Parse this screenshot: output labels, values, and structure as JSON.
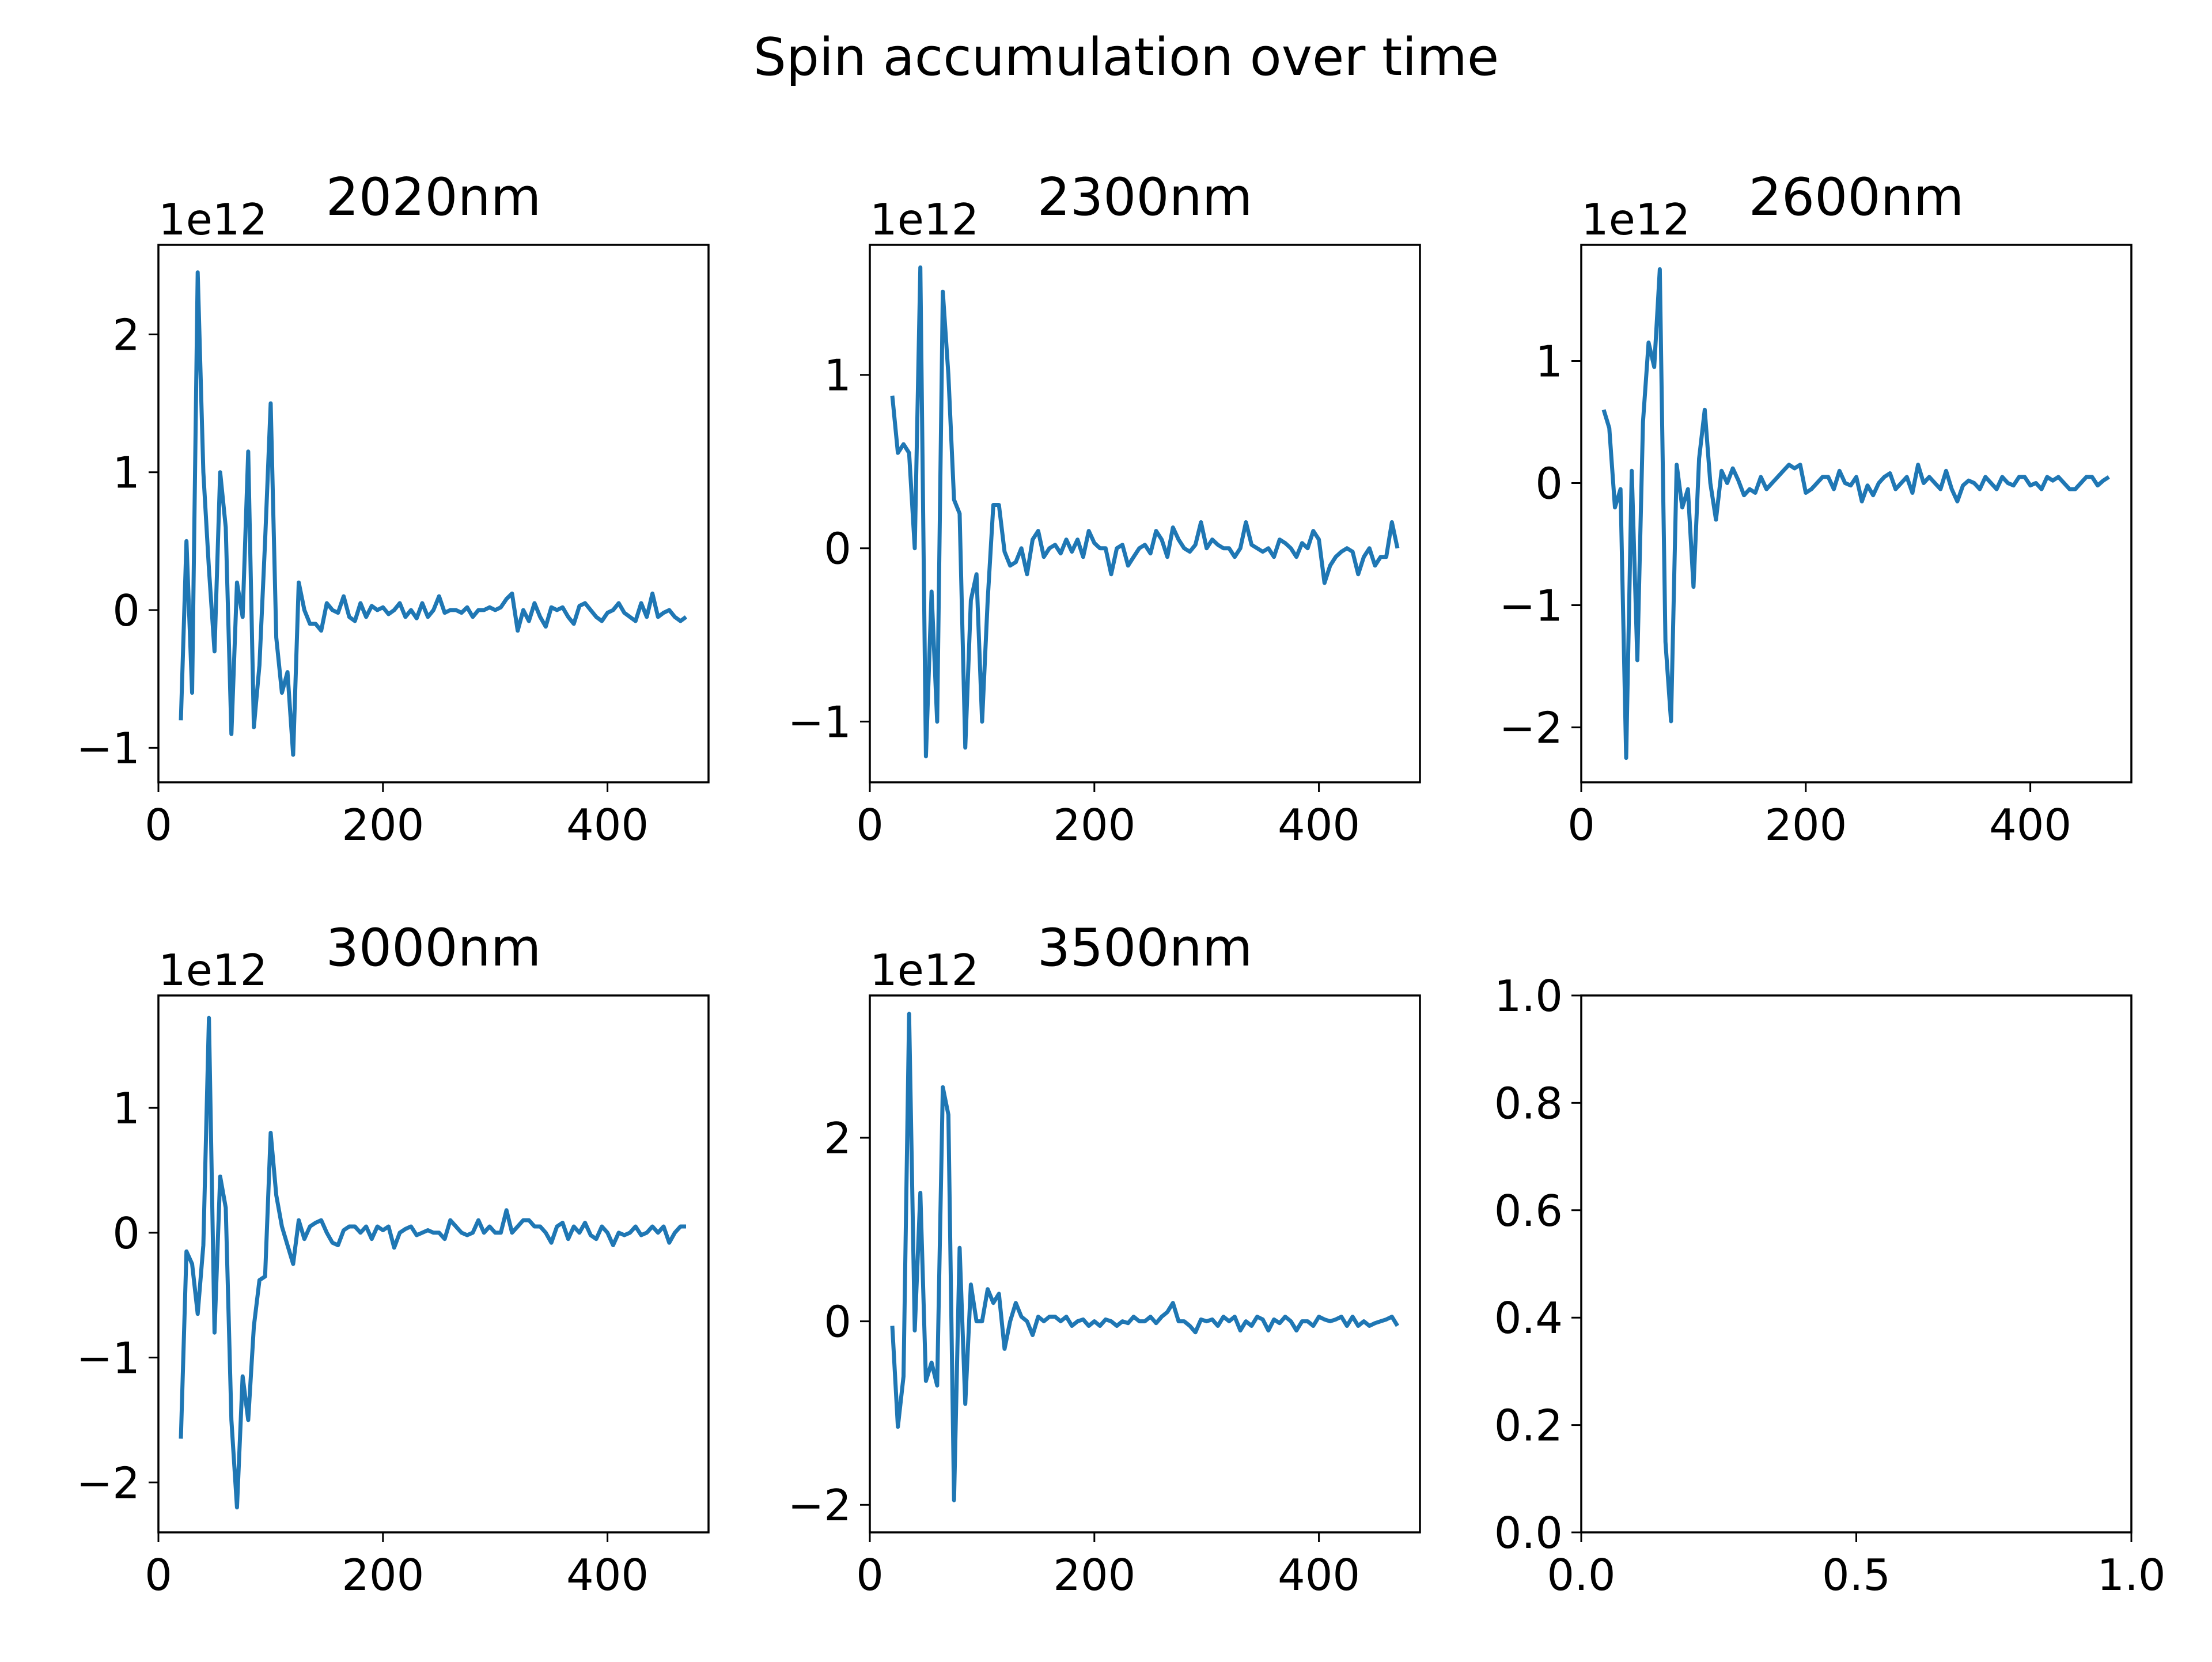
{
  "figure": {
    "title": "Spin accumulation over time"
  },
  "style": {
    "line_color": "#1f77b4",
    "axis_color": "#000000",
    "background": "#ffffff"
  },
  "chart_data": [
    {
      "type": "line",
      "title": "2020nm",
      "offset_text": "1e12",
      "xlim": [
        0,
        490
      ],
      "ylim": [
        -1.25,
        2.65
      ],
      "xticks": [
        0,
        200,
        400
      ],
      "xtick_labels": [
        "0",
        "200",
        "400"
      ],
      "yticks": [
        -1,
        0,
        1,
        2
      ],
      "ytick_labels": [
        "−1",
        "0",
        "1",
        "2"
      ],
      "series": [
        {
          "x": [
            20,
            25,
            30,
            35,
            40,
            45,
            50,
            55,
            60,
            65,
            70,
            75,
            80,
            85,
            90,
            95,
            100,
            105,
            110,
            115,
            120,
            125,
            130,
            135,
            140,
            145,
            150,
            155,
            160,
            165,
            170,
            175,
            180,
            185,
            190,
            195,
            200,
            205,
            210,
            215,
            220,
            225,
            230,
            235,
            240,
            245,
            250,
            255,
            260,
            265,
            270,
            275,
            280,
            285,
            290,
            295,
            300,
            305,
            310,
            315,
            320,
            325,
            330,
            335,
            340,
            345,
            350,
            355,
            360,
            365,
            370,
            375,
            380,
            385,
            390,
            395,
            400,
            405,
            410,
            415,
            420,
            425,
            430,
            435,
            440,
            445,
            450,
            455,
            460,
            465,
            470
          ],
          "y": [
            -0.8,
            0.5,
            -0.6,
            2.45,
            1.0,
            0.3,
            -0.3,
            1.0,
            0.6,
            -0.9,
            0.2,
            -0.05,
            1.15,
            -0.85,
            -0.4,
            0.5,
            1.5,
            -0.2,
            -0.6,
            -0.45,
            -1.05,
            0.2,
            0.0,
            -0.1,
            -0.1,
            -0.15,
            0.05,
            0.0,
            -0.02,
            0.1,
            -0.05,
            -0.08,
            0.05,
            -0.05,
            0.03,
            0.0,
            0.02,
            -0.03,
            0.0,
            0.05,
            -0.05,
            0.0,
            -0.06,
            0.05,
            -0.05,
            0.0,
            0.1,
            -0.02,
            0.0,
            0.0,
            -0.02,
            0.02,
            -0.05,
            0.0,
            0.0,
            0.02,
            0.0,
            0.02,
            0.08,
            0.12,
            -0.15,
            0.0,
            -0.08,
            0.05,
            -0.05,
            -0.12,
            0.02,
            0.0,
            0.02,
            -0.05,
            -0.1,
            0.03,
            0.05,
            0.0,
            -0.05,
            -0.08,
            -0.02,
            0.0,
            0.05,
            -0.02,
            -0.05,
            -0.08,
            0.05,
            -0.05,
            0.12,
            -0.05,
            -0.02,
            0.0,
            -0.05,
            -0.08,
            -0.05
          ]
        }
      ]
    },
    {
      "type": "line",
      "title": "2300nm",
      "offset_text": "1e12",
      "xlim": [
        0,
        490
      ],
      "ylim": [
        -1.35,
        1.75
      ],
      "xticks": [
        0,
        200,
        400
      ],
      "xtick_labels": [
        "0",
        "200",
        "400"
      ],
      "yticks": [
        -1,
        0,
        1
      ],
      "ytick_labels": [
        "−1",
        "0",
        "1"
      ],
      "series": [
        {
          "x": [
            20,
            25,
            30,
            35,
            40,
            45,
            50,
            55,
            60,
            65,
            70,
            75,
            80,
            85,
            90,
            95,
            100,
            105,
            110,
            115,
            120,
            125,
            130,
            135,
            140,
            145,
            150,
            155,
            160,
            165,
            170,
            175,
            180,
            185,
            190,
            195,
            200,
            205,
            210,
            215,
            220,
            225,
            230,
            235,
            240,
            245,
            250,
            255,
            260,
            265,
            270,
            275,
            280,
            285,
            290,
            295,
            300,
            305,
            310,
            315,
            320,
            325,
            330,
            335,
            340,
            345,
            350,
            355,
            360,
            365,
            370,
            375,
            380,
            385,
            390,
            395,
            400,
            405,
            410,
            415,
            420,
            425,
            430,
            435,
            440,
            445,
            450,
            455,
            460,
            465,
            470
          ],
          "y": [
            0.88,
            0.55,
            0.6,
            0.55,
            0.0,
            1.62,
            -1.2,
            -0.25,
            -1.0,
            1.48,
            1.0,
            0.28,
            0.2,
            -1.15,
            -0.3,
            -0.15,
            -1.0,
            -0.3,
            0.25,
            0.25,
            -0.02,
            -0.1,
            -0.08,
            0.0,
            -0.15,
            0.05,
            0.1,
            -0.05,
            0.0,
            0.02,
            -0.03,
            0.05,
            -0.02,
            0.05,
            -0.05,
            0.1,
            0.03,
            0.0,
            0.0,
            -0.15,
            0.0,
            0.02,
            -0.1,
            -0.05,
            0.0,
            0.02,
            -0.03,
            0.1,
            0.05,
            -0.05,
            0.12,
            0.05,
            0.0,
            -0.02,
            0.02,
            0.15,
            0.0,
            0.05,
            0.02,
            0.0,
            0.0,
            -0.05,
            0.0,
            0.15,
            0.02,
            0.0,
            -0.02,
            0.0,
            -0.05,
            0.05,
            0.03,
            0.0,
            -0.05,
            0.03,
            0.0,
            0.1,
            0.05,
            -0.2,
            -0.1,
            -0.05,
            -0.02,
            0.0,
            -0.02,
            -0.15,
            -0.05,
            0.0,
            -0.1,
            -0.05,
            -0.05,
            0.15,
            0.0
          ]
        }
      ]
    },
    {
      "type": "line",
      "title": "2600nm",
      "offset_text": "1e12",
      "xlim": [
        0,
        490
      ],
      "ylim": [
        -2.45,
        1.95
      ],
      "xticks": [
        0,
        200,
        400
      ],
      "xtick_labels": [
        "0",
        "200",
        "400"
      ],
      "yticks": [
        -2,
        -1,
        0,
        1
      ],
      "ytick_labels": [
        "−2",
        "−1",
        "0",
        "1"
      ],
      "series": [
        {
          "x": [
            20,
            25,
            30,
            35,
            40,
            45,
            50,
            55,
            60,
            65,
            70,
            75,
            80,
            85,
            90,
            95,
            100,
            105,
            110,
            115,
            120,
            125,
            130,
            135,
            140,
            145,
            150,
            155,
            160,
            165,
            170,
            175,
            180,
            185,
            190,
            195,
            200,
            205,
            210,
            215,
            220,
            225,
            230,
            235,
            240,
            245,
            250,
            255,
            260,
            265,
            270,
            275,
            280,
            285,
            290,
            295,
            300,
            305,
            310,
            315,
            320,
            325,
            330,
            335,
            340,
            345,
            350,
            355,
            360,
            365,
            370,
            375,
            380,
            385,
            390,
            395,
            400,
            405,
            410,
            415,
            420,
            425,
            430,
            435,
            440,
            445,
            450,
            455,
            460,
            465,
            470
          ],
          "y": [
            0.6,
            0.45,
            -0.2,
            -0.05,
            -2.25,
            0.1,
            -1.45,
            0.5,
            1.15,
            0.95,
            1.75,
            -1.3,
            -1.95,
            0.15,
            -0.2,
            -0.05,
            -0.85,
            0.2,
            0.6,
            0.0,
            -0.3,
            0.1,
            0.0,
            0.12,
            0.02,
            -0.1,
            -0.05,
            -0.08,
            0.05,
            -0.05,
            0.0,
            0.05,
            0.1,
            0.15,
            0.12,
            0.15,
            -0.08,
            -0.05,
            0.0,
            0.05,
            0.05,
            -0.05,
            0.1,
            0.0,
            -0.02,
            0.05,
            -0.15,
            -0.02,
            -0.1,
            0.0,
            0.05,
            0.08,
            -0.05,
            0.0,
            0.05,
            -0.08,
            0.15,
            0.0,
            0.05,
            0.0,
            -0.05,
            0.1,
            -0.05,
            -0.15,
            -0.02,
            0.02,
            0.0,
            -0.05,
            0.05,
            0.0,
            -0.05,
            0.05,
            0.0,
            -0.02,
            0.05,
            0.05,
            -0.02,
            0.0,
            -0.05,
            0.05,
            0.02,
            0.05,
            0.0,
            -0.05,
            -0.05,
            0.0,
            0.05,
            0.05,
            -0.02,
            0.02,
            0.05
          ]
        }
      ]
    },
    {
      "type": "line",
      "title": "3000nm",
      "offset_text": "1e12",
      "xlim": [
        0,
        490
      ],
      "ylim": [
        -2.4,
        1.9
      ],
      "xticks": [
        0,
        200,
        400
      ],
      "xtick_labels": [
        "0",
        "200",
        "400"
      ],
      "yticks": [
        -2,
        -1,
        0,
        1
      ],
      "ytick_labels": [
        "−2",
        "−1",
        "0",
        "1"
      ],
      "series": [
        {
          "x": [
            20,
            25,
            30,
            35,
            40,
            45,
            50,
            55,
            60,
            65,
            70,
            75,
            80,
            85,
            90,
            95,
            100,
            105,
            110,
            115,
            120,
            125,
            130,
            135,
            140,
            145,
            150,
            155,
            160,
            165,
            170,
            175,
            180,
            185,
            190,
            195,
            200,
            205,
            210,
            215,
            220,
            225,
            230,
            235,
            240,
            245,
            250,
            255,
            260,
            265,
            270,
            275,
            280,
            285,
            290,
            295,
            300,
            305,
            310,
            315,
            320,
            325,
            330,
            335,
            340,
            345,
            350,
            355,
            360,
            365,
            370,
            375,
            380,
            385,
            390,
            395,
            400,
            405,
            410,
            415,
            420,
            425,
            430,
            435,
            440,
            445,
            450,
            455,
            460,
            465,
            470
          ],
          "y": [
            -1.65,
            -0.15,
            -0.25,
            -0.65,
            -0.1,
            1.72,
            -0.8,
            0.45,
            0.2,
            -1.5,
            -2.2,
            -1.15,
            -1.5,
            -0.75,
            -0.38,
            -0.35,
            0.8,
            0.3,
            0.05,
            -0.1,
            -0.25,
            0.1,
            -0.05,
            0.05,
            0.08,
            0.1,
            0.0,
            -0.08,
            -0.1,
            0.02,
            0.05,
            0.05,
            0.0,
            0.05,
            -0.05,
            0.05,
            0.02,
            0.05,
            -0.12,
            0.0,
            0.03,
            0.05,
            -0.02,
            0.0,
            0.02,
            0.0,
            0.0,
            -0.05,
            0.1,
            0.05,
            0.0,
            -0.02,
            0.0,
            0.1,
            0.0,
            0.05,
            0.0,
            0.0,
            0.18,
            0.0,
            0.05,
            0.1,
            0.1,
            0.05,
            0.05,
            0.0,
            -0.08,
            0.05,
            0.08,
            -0.05,
            0.05,
            0.0,
            0.08,
            -0.02,
            -0.05,
            0.05,
            0.0,
            -0.1,
            0.0,
            -0.02,
            0.0,
            0.05,
            -0.02,
            0.0,
            0.05,
            0.0,
            0.05,
            -0.08,
            0.0,
            0.05,
            0.05
          ]
        }
      ]
    },
    {
      "type": "line",
      "title": "3500nm",
      "offset_text": "1e12",
      "xlim": [
        0,
        490
      ],
      "ylim": [
        -2.3,
        3.55
      ],
      "xticks": [
        0,
        200,
        400
      ],
      "xtick_labels": [
        "0",
        "200",
        "400"
      ],
      "yticks": [
        -2,
        0,
        2
      ],
      "ytick_labels": [
        "−2",
        "0",
        "2"
      ],
      "series": [
        {
          "x": [
            20,
            25,
            30,
            35,
            40,
            45,
            50,
            55,
            60,
            65,
            70,
            75,
            80,
            85,
            90,
            95,
            100,
            105,
            110,
            115,
            120,
            125,
            130,
            135,
            140,
            145,
            150,
            155,
            160,
            165,
            170,
            175,
            180,
            185,
            190,
            195,
            200,
            205,
            210,
            215,
            220,
            225,
            230,
            235,
            240,
            245,
            250,
            255,
            260,
            265,
            270,
            275,
            280,
            285,
            290,
            295,
            300,
            305,
            310,
            315,
            320,
            325,
            330,
            335,
            340,
            345,
            350,
            355,
            360,
            365,
            370,
            375,
            380,
            385,
            390,
            395,
            400,
            405,
            410,
            415,
            420,
            425,
            430,
            435,
            440,
            445,
            450,
            455,
            460,
            465,
            470
          ],
          "y": [
            -0.05,
            -1.15,
            -0.6,
            3.35,
            -0.1,
            1.4,
            -0.65,
            -0.45,
            -0.7,
            2.55,
            2.25,
            -1.95,
            0.8,
            -0.9,
            0.4,
            0.0,
            0.0,
            0.35,
            0.2,
            0.3,
            -0.3,
            0.0,
            0.2,
            0.05,
            0.0,
            -0.15,
            0.05,
            0.0,
            0.05,
            0.05,
            0.0,
            0.05,
            -0.05,
            0.0,
            0.02,
            -0.05,
            0.0,
            -0.05,
            0.02,
            0.0,
            -0.05,
            0.0,
            -0.02,
            0.05,
            0.0,
            0.0,
            0.05,
            -0.02,
            0.05,
            0.1,
            0.2,
            0.0,
            0.0,
            -0.05,
            -0.12,
            0.02,
            0.0,
            0.02,
            -0.05,
            0.05,
            0.0,
            0.05,
            -0.1,
            0.0,
            -0.05,
            0.05,
            0.02,
            -0.1,
            0.02,
            -0.02,
            0.05,
            0.0,
            -0.1,
            0.0,
            0.0,
            -0.05,
            0.05,
            0.02,
            0.0,
            0.02,
            0.05,
            -0.05,
            0.05,
            -0.05,
            0.0,
            -0.05,
            -0.02,
            0.0,
            0.02,
            0.05,
            -0.05
          ]
        }
      ]
    },
    {
      "type": "line",
      "title": "",
      "offset_text": "",
      "xlim": [
        0,
        1
      ],
      "ylim": [
        0,
        1
      ],
      "xticks": [
        0,
        0.5,
        1
      ],
      "xtick_labels": [
        "0.0",
        "0.5",
        "1.0"
      ],
      "yticks": [
        0,
        0.2,
        0.4,
        0.6,
        0.8,
        1.0
      ],
      "ytick_labels": [
        "0.0",
        "0.2",
        "0.4",
        "0.6",
        "0.8",
        "1.0"
      ],
      "series": []
    }
  ]
}
